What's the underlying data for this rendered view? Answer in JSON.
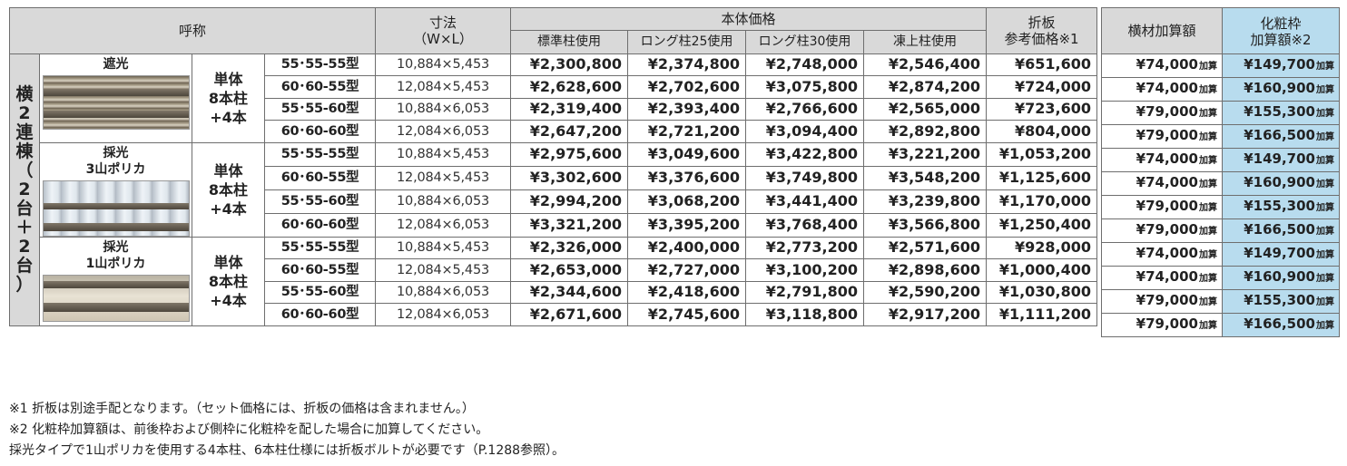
{
  "header": {
    "name": "呼称",
    "size_line1": "寸法",
    "size_line2": "（W×L）",
    "body_price": "本体価格",
    "post_types": [
      "標準柱使用",
      "ロング柱25使用",
      "ロング柱30使用",
      "凍上柱使用"
    ],
    "folded_line1": "折板",
    "folded_line2": "参考価格※1",
    "yokozai": "横材加算額",
    "kesho_line1": "化粧枠",
    "kesho_line2": "加算額※2"
  },
  "side_label": [
    "横",
    "2",
    "連",
    "棟",
    "（",
    "2",
    "台",
    "＋",
    "2",
    "台",
    "）"
  ],
  "spec_lines": [
    "単体",
    "8本柱",
    "+4本"
  ],
  "add_suffix": "加算",
  "groups": [
    {
      "label": [
        "遮光"
      ],
      "image": "shading-roof-photo",
      "rows": [
        {
          "model": "55･55-55型",
          "size": "10,884×5,453",
          "prices": [
            "¥2,300,800",
            "¥2,374,800",
            "¥2,748,000",
            "¥2,546,400"
          ],
          "folded": "¥651,600",
          "yokozai": "¥74,000",
          "kesho": "¥149,700"
        },
        {
          "model": "60･60-55型",
          "size": "12,084×5,453",
          "prices": [
            "¥2,628,600",
            "¥2,702,600",
            "¥3,075,800",
            "¥2,874,200"
          ],
          "folded": "¥724,000",
          "yokozai": "¥74,000",
          "kesho": "¥160,900"
        },
        {
          "model": "55･55-60型",
          "size": "10,884×6,053",
          "prices": [
            "¥2,319,400",
            "¥2,393,400",
            "¥2,766,600",
            "¥2,565,000"
          ],
          "folded": "¥723,600",
          "yokozai": "¥79,000",
          "kesho": "¥155,300"
        },
        {
          "model": "60･60-60型",
          "size": "12,084×6,053",
          "prices": [
            "¥2,647,200",
            "¥2,721,200",
            "¥3,094,400",
            "¥2,892,800"
          ],
          "folded": "¥804,000",
          "yokozai": "¥79,000",
          "kesho": "¥166,500"
        }
      ]
    },
    {
      "label": [
        "採光",
        "3山ポリカ"
      ],
      "image": "daylight-3-ridge-polycarbonate-photo",
      "rows": [
        {
          "model": "55･55-55型",
          "size": "10,884×5,453",
          "prices": [
            "¥2,975,600",
            "¥3,049,600",
            "¥3,422,800",
            "¥3,221,200"
          ],
          "folded": "¥1,053,200",
          "yokozai": "¥74,000",
          "kesho": "¥149,700"
        },
        {
          "model": "60･60-55型",
          "size": "12,084×5,453",
          "prices": [
            "¥3,302,600",
            "¥3,376,600",
            "¥3,749,800",
            "¥3,548,200"
          ],
          "folded": "¥1,125,600",
          "yokozai": "¥74,000",
          "kesho": "¥160,900"
        },
        {
          "model": "55･55-60型",
          "size": "10,884×6,053",
          "prices": [
            "¥2,994,200",
            "¥3,068,200",
            "¥3,441,400",
            "¥3,239,800"
          ],
          "folded": "¥1,170,000",
          "yokozai": "¥79,000",
          "kesho": "¥155,300"
        },
        {
          "model": "60･60-60型",
          "size": "12,084×6,053",
          "prices": [
            "¥3,321,200",
            "¥3,395,200",
            "¥3,768,400",
            "¥3,566,800"
          ],
          "folded": "¥1,250,400",
          "yokozai": "¥79,000",
          "kesho": "¥166,500"
        }
      ]
    },
    {
      "label": [
        "採光",
        "1山ポリカ"
      ],
      "image": "daylight-1-ridge-polycarbonate-photo",
      "rows": [
        {
          "model": "55･55-55型",
          "size": "10,884×5,453",
          "prices": [
            "¥2,326,000",
            "¥2,400,000",
            "¥2,773,200",
            "¥2,571,600"
          ],
          "folded": "¥928,000",
          "yokozai": "¥74,000",
          "kesho": "¥149,700"
        },
        {
          "model": "60･60-55型",
          "size": "12,084×5,453",
          "prices": [
            "¥2,653,000",
            "¥2,727,000",
            "¥3,100,200",
            "¥2,898,600"
          ],
          "folded": "¥1,000,400",
          "yokozai": "¥74,000",
          "kesho": "¥160,900"
        },
        {
          "model": "55･55-60型",
          "size": "10,884×6,053",
          "prices": [
            "¥2,344,600",
            "¥2,418,600",
            "¥2,791,800",
            "¥2,590,200"
          ],
          "folded": "¥1,030,800",
          "yokozai": "¥79,000",
          "kesho": "¥155,300"
        },
        {
          "model": "60･60-60型",
          "size": "12,084×6,053",
          "prices": [
            "¥2,671,600",
            "¥2,745,600",
            "¥3,118,800",
            "¥2,917,200"
          ],
          "folded": "¥1,111,200",
          "yokozai": "¥79,000",
          "kesho": "¥166,500"
        }
      ]
    }
  ],
  "notes": [
    "※1 折板は別途手配となります。（セット価格には、折板の価格は含まれません。）",
    "※2 化粧枠加算額は、前後枠および側枠に化粧枠を配した場合に加算してください。",
    "採光タイプで1山ポリカを使用する4本柱、6本柱仕様には折板ボルトが必要です（P.1288参照）。"
  ],
  "colors": {
    "header_bg": "#d9d9d9",
    "highlight": "#b8dcee",
    "border": "#6e6e6e"
  }
}
